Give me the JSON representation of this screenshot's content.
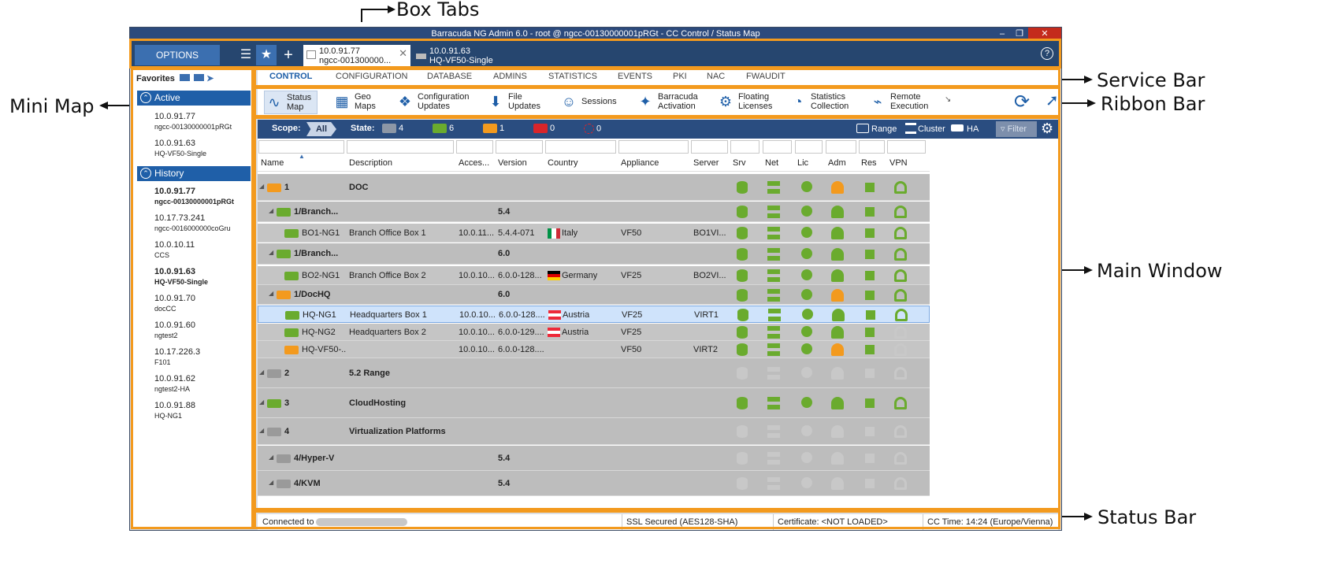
{
  "annotations": {
    "box_tabs": "Box Tabs",
    "service_bar": "Service Bar",
    "ribbon_bar": "Ribbon Bar",
    "mini_map": "Mini Map",
    "main_window": "Main Window",
    "status_bar": "Status Bar"
  },
  "window": {
    "title": "Barracuda NG Admin 6.0  -  root @ ngcc-00130000001pRGt  -  CC Control / Status Map"
  },
  "tabs": {
    "options_label": "OPTIONS",
    "tab1_line1": "10.0.91.77",
    "tab1_line2": "ngcc-001300000...",
    "tab2_line1": "10.0.91.63",
    "tab2_line2": "HQ-VF50-Single"
  },
  "sidebar": {
    "favorites_label": "Favorites",
    "active_label": "Active",
    "history_label": "History",
    "active": [
      {
        "ip": "10.0.91.77",
        "name": "ngcc-00130000001pRGt"
      },
      {
        "ip": "10.0.91.63",
        "name": "HQ-VF50-Single"
      }
    ],
    "history": [
      {
        "ip": "10.0.91.77",
        "name": "ngcc-00130000001pRGt",
        "bold": true
      },
      {
        "ip": "10.17.73.241",
        "name": "ngcc-0016000000coGru"
      },
      {
        "ip": "10.0.10.11",
        "name": "CCS"
      },
      {
        "ip": "10.0.91.63",
        "name": "HQ-VF50-Single",
        "bold": true
      },
      {
        "ip": "10.0.91.70",
        "name": "docCC"
      },
      {
        "ip": "10.0.91.60",
        "name": "ngtest2"
      },
      {
        "ip": "10.17.226.3",
        "name": "F101"
      },
      {
        "ip": "10.0.91.62",
        "name": "ngtest2-HA"
      },
      {
        "ip": "10.0.91.88",
        "name": "HQ-NG1"
      }
    ]
  },
  "service_bar": {
    "items": [
      "CONTROL",
      "CONFIGURATION",
      "DATABASE",
      "ADMINS",
      "STATISTICS",
      "EVENTS",
      "PKI",
      "NAC",
      "FWAUDIT"
    ]
  },
  "ribbon": {
    "items": [
      {
        "line1": "Status",
        "line2": "Map"
      },
      {
        "line1": "Geo",
        "line2": "Maps"
      },
      {
        "line1": "Configuration",
        "line2": "Updates"
      },
      {
        "line1": "File",
        "line2": "Updates"
      },
      {
        "line1": "Sessions",
        "line2": ""
      },
      {
        "line1": "Barracuda",
        "line2": "Activation"
      },
      {
        "line1": "Floating",
        "line2": "Licenses"
      },
      {
        "line1": "Statistics",
        "line2": "Collection"
      },
      {
        "line1": "Remote",
        "line2": "Execution"
      }
    ]
  },
  "scope": {
    "scope_label": "Scope:",
    "scope_value": "All",
    "state_label": "State:",
    "state_counts": [
      "4",
      "6",
      "1",
      "0",
      "0"
    ],
    "range": "Range",
    "cluster": "Cluster",
    "ha": "HA",
    "filter": "Filter"
  },
  "columns": [
    "Name",
    "Description",
    "Acces...",
    "Version",
    "Country",
    "Appliance",
    "Server",
    "Srv",
    "Net",
    "Lic",
    "Adm",
    "Res",
    "VPN"
  ],
  "rows": [
    {
      "name": "1",
      "desc": "DOC",
      "acc": "",
      "ver": "",
      "country": "",
      "app": "",
      "srv": "",
      "type": "range",
      "adm": "orange"
    },
    {
      "name": "1/Branch...",
      "desc": "",
      "acc": "",
      "ver": "5.4",
      "country": "",
      "app": "",
      "srv": "",
      "type": "cluster",
      "adm": "green"
    },
    {
      "name": "BO1-NG1",
      "desc": "Branch Office Box 1",
      "acc": "10.0.11...",
      "ver": "5.4.4-071",
      "country": "Italy",
      "app": "VF50",
      "srv": "BO1VI...",
      "type": "box",
      "adm": "green"
    },
    {
      "name": "1/Branch...",
      "desc": "",
      "acc": "",
      "ver": "6.0",
      "country": "",
      "app": "",
      "srv": "",
      "type": "cluster",
      "adm": "green"
    },
    {
      "name": "BO2-NG1",
      "desc": "Branch Office Box  2",
      "acc": "10.0.10...",
      "ver": "6.0.0-128...",
      "country": "Germany",
      "app": "VF25",
      "srv": "BO2VI...",
      "type": "box",
      "adm": "green"
    },
    {
      "name": "1/DocHQ",
      "desc": "",
      "acc": "",
      "ver": "6.0",
      "country": "",
      "app": "",
      "srv": "",
      "type": "cluster",
      "adm": "orange"
    },
    {
      "name": "HQ-NG1",
      "desc": "Headquarters Box 1",
      "acc": "10.0.10...",
      "ver": "6.0.0-128....",
      "country": "Austria",
      "app": "VF25",
      "srv": "VIRT1",
      "type": "box",
      "adm": "green",
      "selected": true
    },
    {
      "name": "HQ-NG2",
      "desc": "Headquarters Box 2",
      "acc": "10.0.10...",
      "ver": "6.0.0-129....",
      "country": "Austria",
      "app": "VF25",
      "srv": "",
      "type": "box",
      "adm": "green"
    },
    {
      "name": "HQ-VF50-...",
      "desc": "",
      "acc": "10.0.10...",
      "ver": "6.0.0-128....",
      "country": "",
      "app": "VF50",
      "srv": "VIRT2",
      "type": "box",
      "adm": "orange"
    },
    {
      "name": "2",
      "desc": "5.2 Range",
      "acc": "",
      "ver": "",
      "country": "",
      "app": "",
      "srv": "",
      "type": "range",
      "adm": "gray"
    },
    {
      "name": "3",
      "desc": "CloudHosting",
      "acc": "",
      "ver": "",
      "country": "",
      "app": "",
      "srv": "",
      "type": "range",
      "adm": "green"
    },
    {
      "name": "4",
      "desc": "Virtualization Platforms",
      "acc": "",
      "ver": "",
      "country": "",
      "app": "",
      "srv": "",
      "type": "range",
      "adm": "gray"
    },
    {
      "name": "4/Hyper-V",
      "desc": "",
      "acc": "",
      "ver": "5.4",
      "country": "",
      "app": "",
      "srv": "",
      "type": "cluster",
      "adm": "gray"
    },
    {
      "name": "4/KVM",
      "desc": "",
      "acc": "",
      "ver": "5.4",
      "country": "",
      "app": "",
      "srv": "",
      "type": "cluster",
      "adm": "gray"
    }
  ],
  "status_bar": {
    "connected": "Connected to",
    "ssl": "SSL Secured (AES128-SHA)",
    "cert": "Certificate: <NOT LOADED>",
    "time": "CC Time: 14:24 (Europe/Vienna)"
  },
  "colors": {
    "accent": "#f39a1e",
    "green": "#6aab2e",
    "orange": "#f39a1e",
    "gray": "#c8c8c8",
    "blue": "#2a4d80"
  }
}
